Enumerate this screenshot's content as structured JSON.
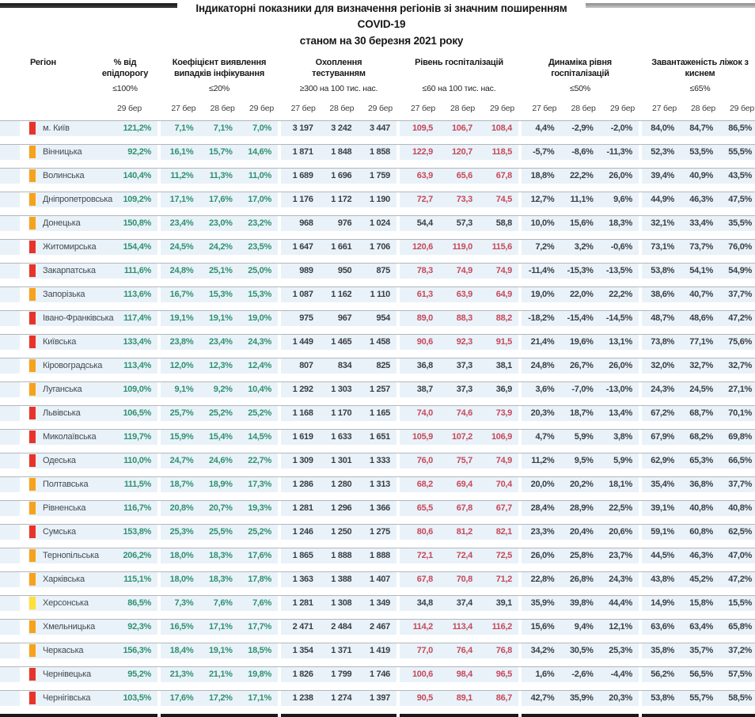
{
  "title": {
    "line1": "Індикаторні показники для визначення регіонів зі значним поширенням COVID-19",
    "line2": "станом на 30 березня 2021 року"
  },
  "columns": {
    "region_label": "Регіон",
    "groups": [
      {
        "name": "% від епідпорогу",
        "threshold": "≤100%",
        "dates": [
          "29 бер"
        ]
      },
      {
        "name": "Коефіцієнт виявлення випадків інфікування",
        "threshold": "≤20%",
        "dates": [
          "27 бер",
          "28 бер",
          "29 бер"
        ]
      },
      {
        "name": "Охоплення тестуванням",
        "threshold": "≥300 на 100 тис. нас.",
        "dates": [
          "27 бер",
          "28 бер",
          "29 бер"
        ]
      },
      {
        "name": "Рівень госпіталізацій",
        "threshold": "≤60 на 100 тис. нас.",
        "dates": [
          "27 бер",
          "28 бер",
          "29 бер"
        ]
      },
      {
        "name": "Динаміка рівня госпіталізацій",
        "threshold": "≤50%",
        "dates": [
          "27 бер",
          "28 бер",
          "29 бер"
        ]
      },
      {
        "name": "Завантаженість ліжок з киснем",
        "threshold": "≤65%",
        "dates": [
          "27 бер",
          "28 бер",
          "29 бер"
        ]
      }
    ]
  },
  "colors": {
    "green_text": "#2f9170",
    "red_text": "#c6485a",
    "dark_text": "#3a3e42",
    "row_bg": "#e9f2f9",
    "markers": {
      "red": "#e8332a",
      "orange": "#f7a21c",
      "yellow": "#ffe135"
    }
  },
  "hosp_threshold": 60,
  "rows": [
    {
      "region": "м. Київ",
      "marker": "red",
      "epid": "121,2%",
      "coef": [
        "7,1%",
        "7,1%",
        "7,0%"
      ],
      "test": [
        "3 197",
        "3 242",
        "3 447"
      ],
      "hosp": [
        "109,5",
        "106,7",
        "108,4"
      ],
      "dyn": [
        "4,4%",
        "-2,9%",
        "-2,0%"
      ],
      "beds": [
        "84,0%",
        "84,7%",
        "86,5%"
      ]
    },
    {
      "region": "Вінницька",
      "marker": "orange",
      "epid": "92,2%",
      "coef": [
        "16,1%",
        "15,7%",
        "14,6%"
      ],
      "test": [
        "1 871",
        "1 848",
        "1 858"
      ],
      "hosp": [
        "122,9",
        "120,7",
        "118,5"
      ],
      "dyn": [
        "-5,7%",
        "-8,6%",
        "-11,3%"
      ],
      "beds": [
        "52,3%",
        "53,5%",
        "55,5%"
      ]
    },
    {
      "region": "Волинська",
      "marker": "orange",
      "epid": "140,4%",
      "coef": [
        "11,2%",
        "11,3%",
        "11,0%"
      ],
      "test": [
        "1 689",
        "1 696",
        "1 759"
      ],
      "hosp": [
        "63,9",
        "65,6",
        "67,8"
      ],
      "dyn": [
        "18,8%",
        "22,2%",
        "26,0%"
      ],
      "beds": [
        "39,4%",
        "40,9%",
        "43,5%"
      ]
    },
    {
      "region": "Дніпропетровська",
      "marker": "orange",
      "epid": "109,2%",
      "coef": [
        "17,1%",
        "17,6%",
        "17,0%"
      ],
      "test": [
        "1 176",
        "1 172",
        "1 190"
      ],
      "hosp": [
        "72,7",
        "73,3",
        "74,5"
      ],
      "dyn": [
        "12,7%",
        "11,1%",
        "9,6%"
      ],
      "beds": [
        "44,9%",
        "46,3%",
        "47,5%"
      ]
    },
    {
      "region": "Донецька",
      "marker": "orange",
      "epid": "150,8%",
      "coef": [
        "23,4%",
        "23,0%",
        "23,2%"
      ],
      "test": [
        "968",
        "976",
        "1 024"
      ],
      "hosp": [
        "54,4",
        "57,3",
        "58,8"
      ],
      "dyn": [
        "10,0%",
        "15,6%",
        "18,3%"
      ],
      "beds": [
        "32,1%",
        "33,4%",
        "35,5%"
      ]
    },
    {
      "region": "Житомирська",
      "marker": "red",
      "epid": "154,4%",
      "coef": [
        "24,5%",
        "24,2%",
        "23,5%"
      ],
      "test": [
        "1 647",
        "1 661",
        "1 706"
      ],
      "hosp": [
        "120,6",
        "119,0",
        "115,6"
      ],
      "dyn": [
        "7,2%",
        "3,2%",
        "-0,6%"
      ],
      "beds": [
        "73,1%",
        "73,7%",
        "76,0%"
      ]
    },
    {
      "region": "Закарпатська",
      "marker": "red",
      "epid": "111,6%",
      "coef": [
        "24,8%",
        "25,1%",
        "25,0%"
      ],
      "test": [
        "989",
        "950",
        "875"
      ],
      "hosp": [
        "78,3",
        "74,9",
        "74,9"
      ],
      "dyn": [
        "-11,4%",
        "-15,3%",
        "-13,5%"
      ],
      "beds": [
        "53,8%",
        "54,1%",
        "54,9%"
      ]
    },
    {
      "region": "Запорізька",
      "marker": "orange",
      "epid": "113,6%",
      "coef": [
        "16,7%",
        "15,3%",
        "15,3%"
      ],
      "test": [
        "1 087",
        "1 162",
        "1 110"
      ],
      "hosp": [
        "61,3",
        "63,9",
        "64,9"
      ],
      "dyn": [
        "19,0%",
        "22,0%",
        "22,2%"
      ],
      "beds": [
        "38,6%",
        "40,7%",
        "37,7%"
      ]
    },
    {
      "region": "Івано-Франківська",
      "marker": "red",
      "epid": "117,4%",
      "coef": [
        "19,1%",
        "19,1%",
        "19,0%"
      ],
      "test": [
        "975",
        "967",
        "954"
      ],
      "hosp": [
        "89,0",
        "88,3",
        "88,2"
      ],
      "dyn": [
        "-18,2%",
        "-15,4%",
        "-14,5%"
      ],
      "beds": [
        "48,7%",
        "48,6%",
        "47,2%"
      ]
    },
    {
      "region": "Київська",
      "marker": "red",
      "epid": "133,4%",
      "coef": [
        "23,8%",
        "23,4%",
        "24,3%"
      ],
      "test": [
        "1 449",
        "1 465",
        "1 458"
      ],
      "hosp": [
        "90,6",
        "92,3",
        "91,5"
      ],
      "dyn": [
        "21,4%",
        "19,6%",
        "13,1%"
      ],
      "beds": [
        "73,8%",
        "77,1%",
        "75,6%"
      ]
    },
    {
      "region": "Кіровоградська",
      "marker": "orange",
      "epid": "113,4%",
      "coef": [
        "12,0%",
        "12,3%",
        "12,4%"
      ],
      "test": [
        "807",
        "834",
        "825"
      ],
      "hosp": [
        "36,8",
        "37,3",
        "38,1"
      ],
      "dyn": [
        "24,8%",
        "26,7%",
        "26,0%"
      ],
      "beds": [
        "32,0%",
        "32,7%",
        "32,7%"
      ]
    },
    {
      "region": "Луганська",
      "marker": "orange",
      "epid": "109,0%",
      "coef": [
        "9,1%",
        "9,2%",
        "10,4%"
      ],
      "test": [
        "1 292",
        "1 303",
        "1 257"
      ],
      "hosp": [
        "38,7",
        "37,3",
        "36,9"
      ],
      "dyn": [
        "3,6%",
        "-7,0%",
        "-13,0%"
      ],
      "beds": [
        "24,3%",
        "24,5%",
        "27,1%"
      ]
    },
    {
      "region": "Львівська",
      "marker": "red",
      "epid": "106,5%",
      "coef": [
        "25,7%",
        "25,2%",
        "25,2%"
      ],
      "test": [
        "1 168",
        "1 170",
        "1 165"
      ],
      "hosp": [
        "74,0",
        "74,6",
        "73,9"
      ],
      "dyn": [
        "20,3%",
        "18,7%",
        "13,4%"
      ],
      "beds": [
        "67,2%",
        "68,7%",
        "70,1%"
      ]
    },
    {
      "region": "Миколаївська",
      "marker": "red",
      "epid": "119,7%",
      "coef": [
        "15,9%",
        "15,4%",
        "14,5%"
      ],
      "test": [
        "1 619",
        "1 633",
        "1 651"
      ],
      "hosp": [
        "105,9",
        "107,2",
        "106,9"
      ],
      "dyn": [
        "4,7%",
        "5,9%",
        "3,8%"
      ],
      "beds": [
        "67,9%",
        "68,2%",
        "69,8%"
      ]
    },
    {
      "region": "Одеська",
      "marker": "red",
      "epid": "110,0%",
      "coef": [
        "24,7%",
        "24,6%",
        "22,7%"
      ],
      "test": [
        "1 309",
        "1 301",
        "1 333"
      ],
      "hosp": [
        "76,0",
        "75,7",
        "74,9"
      ],
      "dyn": [
        "11,2%",
        "9,5%",
        "5,9%"
      ],
      "beds": [
        "62,9%",
        "65,3%",
        "66,5%"
      ]
    },
    {
      "region": "Полтавська",
      "marker": "orange",
      "epid": "111,5%",
      "coef": [
        "18,7%",
        "18,9%",
        "17,3%"
      ],
      "test": [
        "1 286",
        "1 280",
        "1 313"
      ],
      "hosp": [
        "68,2",
        "69,4",
        "70,4"
      ],
      "dyn": [
        "20,0%",
        "20,2%",
        "18,1%"
      ],
      "beds": [
        "35,4%",
        "36,8%",
        "37,7%"
      ]
    },
    {
      "region": "Рівненська",
      "marker": "orange",
      "epid": "116,7%",
      "coef": [
        "20,8%",
        "20,7%",
        "19,3%"
      ],
      "test": [
        "1 281",
        "1 296",
        "1 366"
      ],
      "hosp": [
        "65,5",
        "67,8",
        "67,7"
      ],
      "dyn": [
        "28,4%",
        "28,9%",
        "22,5%"
      ],
      "beds": [
        "39,1%",
        "40,8%",
        "40,8%"
      ]
    },
    {
      "region": "Сумська",
      "marker": "red",
      "epid": "153,8%",
      "coef": [
        "25,3%",
        "25,5%",
        "25,2%"
      ],
      "test": [
        "1 246",
        "1 250",
        "1 275"
      ],
      "hosp": [
        "80,6",
        "81,2",
        "82,1"
      ],
      "dyn": [
        "23,3%",
        "20,4%",
        "20,6%"
      ],
      "beds": [
        "59,1%",
        "60,8%",
        "62,5%"
      ]
    },
    {
      "region": "Тернопільська",
      "marker": "orange",
      "epid": "206,2%",
      "coef": [
        "18,0%",
        "18,3%",
        "17,6%"
      ],
      "test": [
        "1 865",
        "1 888",
        "1 888"
      ],
      "hosp": [
        "72,1",
        "72,4",
        "72,5"
      ],
      "dyn": [
        "26,0%",
        "25,8%",
        "23,7%"
      ],
      "beds": [
        "44,5%",
        "46,3%",
        "47,0%"
      ]
    },
    {
      "region": "Харківська",
      "marker": "orange",
      "epid": "115,1%",
      "coef": [
        "18,0%",
        "18,3%",
        "17,8%"
      ],
      "test": [
        "1 363",
        "1 388",
        "1 407"
      ],
      "hosp": [
        "67,8",
        "70,8",
        "71,2"
      ],
      "dyn": [
        "22,8%",
        "26,8%",
        "24,3%"
      ],
      "beds": [
        "43,8%",
        "45,2%",
        "47,2%"
      ]
    },
    {
      "region": "Херсонська",
      "marker": "yellow",
      "epid": "86,5%",
      "coef": [
        "7,3%",
        "7,6%",
        "7,6%"
      ],
      "test": [
        "1 281",
        "1 308",
        "1 349"
      ],
      "hosp": [
        "34,8",
        "37,4",
        "39,1"
      ],
      "dyn": [
        "35,9%",
        "39,8%",
        "44,4%"
      ],
      "beds": [
        "14,9%",
        "15,8%",
        "15,5%"
      ]
    },
    {
      "region": "Хмельницька",
      "marker": "orange",
      "epid": "92,3%",
      "coef": [
        "16,5%",
        "17,1%",
        "17,7%"
      ],
      "test": [
        "2 471",
        "2 484",
        "2 467"
      ],
      "hosp": [
        "114,2",
        "113,4",
        "116,2"
      ],
      "dyn": [
        "15,6%",
        "9,4%",
        "12,1%"
      ],
      "beds": [
        "63,6%",
        "63,4%",
        "65,8%"
      ]
    },
    {
      "region": "Черкаська",
      "marker": "orange",
      "epid": "156,3%",
      "coef": [
        "18,4%",
        "19,1%",
        "18,5%"
      ],
      "test": [
        "1 354",
        "1 371",
        "1 419"
      ],
      "hosp": [
        "77,0",
        "76,4",
        "76,8"
      ],
      "dyn": [
        "34,2%",
        "30,5%",
        "25,3%"
      ],
      "beds": [
        "35,8%",
        "35,7%",
        "37,2%"
      ]
    },
    {
      "region": "Чернівецька",
      "marker": "red",
      "epid": "95,2%",
      "coef": [
        "21,3%",
        "21,1%",
        "19,8%"
      ],
      "test": [
        "1 826",
        "1 799",
        "1 746"
      ],
      "hosp": [
        "100,6",
        "98,4",
        "96,5"
      ],
      "dyn": [
        "1,6%",
        "-2,6%",
        "-4,4%"
      ],
      "beds": [
        "56,2%",
        "56,5%",
        "57,5%"
      ]
    },
    {
      "region": "Чернігівська",
      "marker": "red",
      "epid": "103,5%",
      "coef": [
        "17,6%",
        "17,2%",
        "17,1%"
      ],
      "test": [
        "1 238",
        "1 274",
        "1 397"
      ],
      "hosp": [
        "90,5",
        "89,1",
        "86,7"
      ],
      "dyn": [
        "42,7%",
        "35,9%",
        "20,3%"
      ],
      "beds": [
        "53,8%",
        "55,7%",
        "58,5%"
      ]
    }
  ]
}
